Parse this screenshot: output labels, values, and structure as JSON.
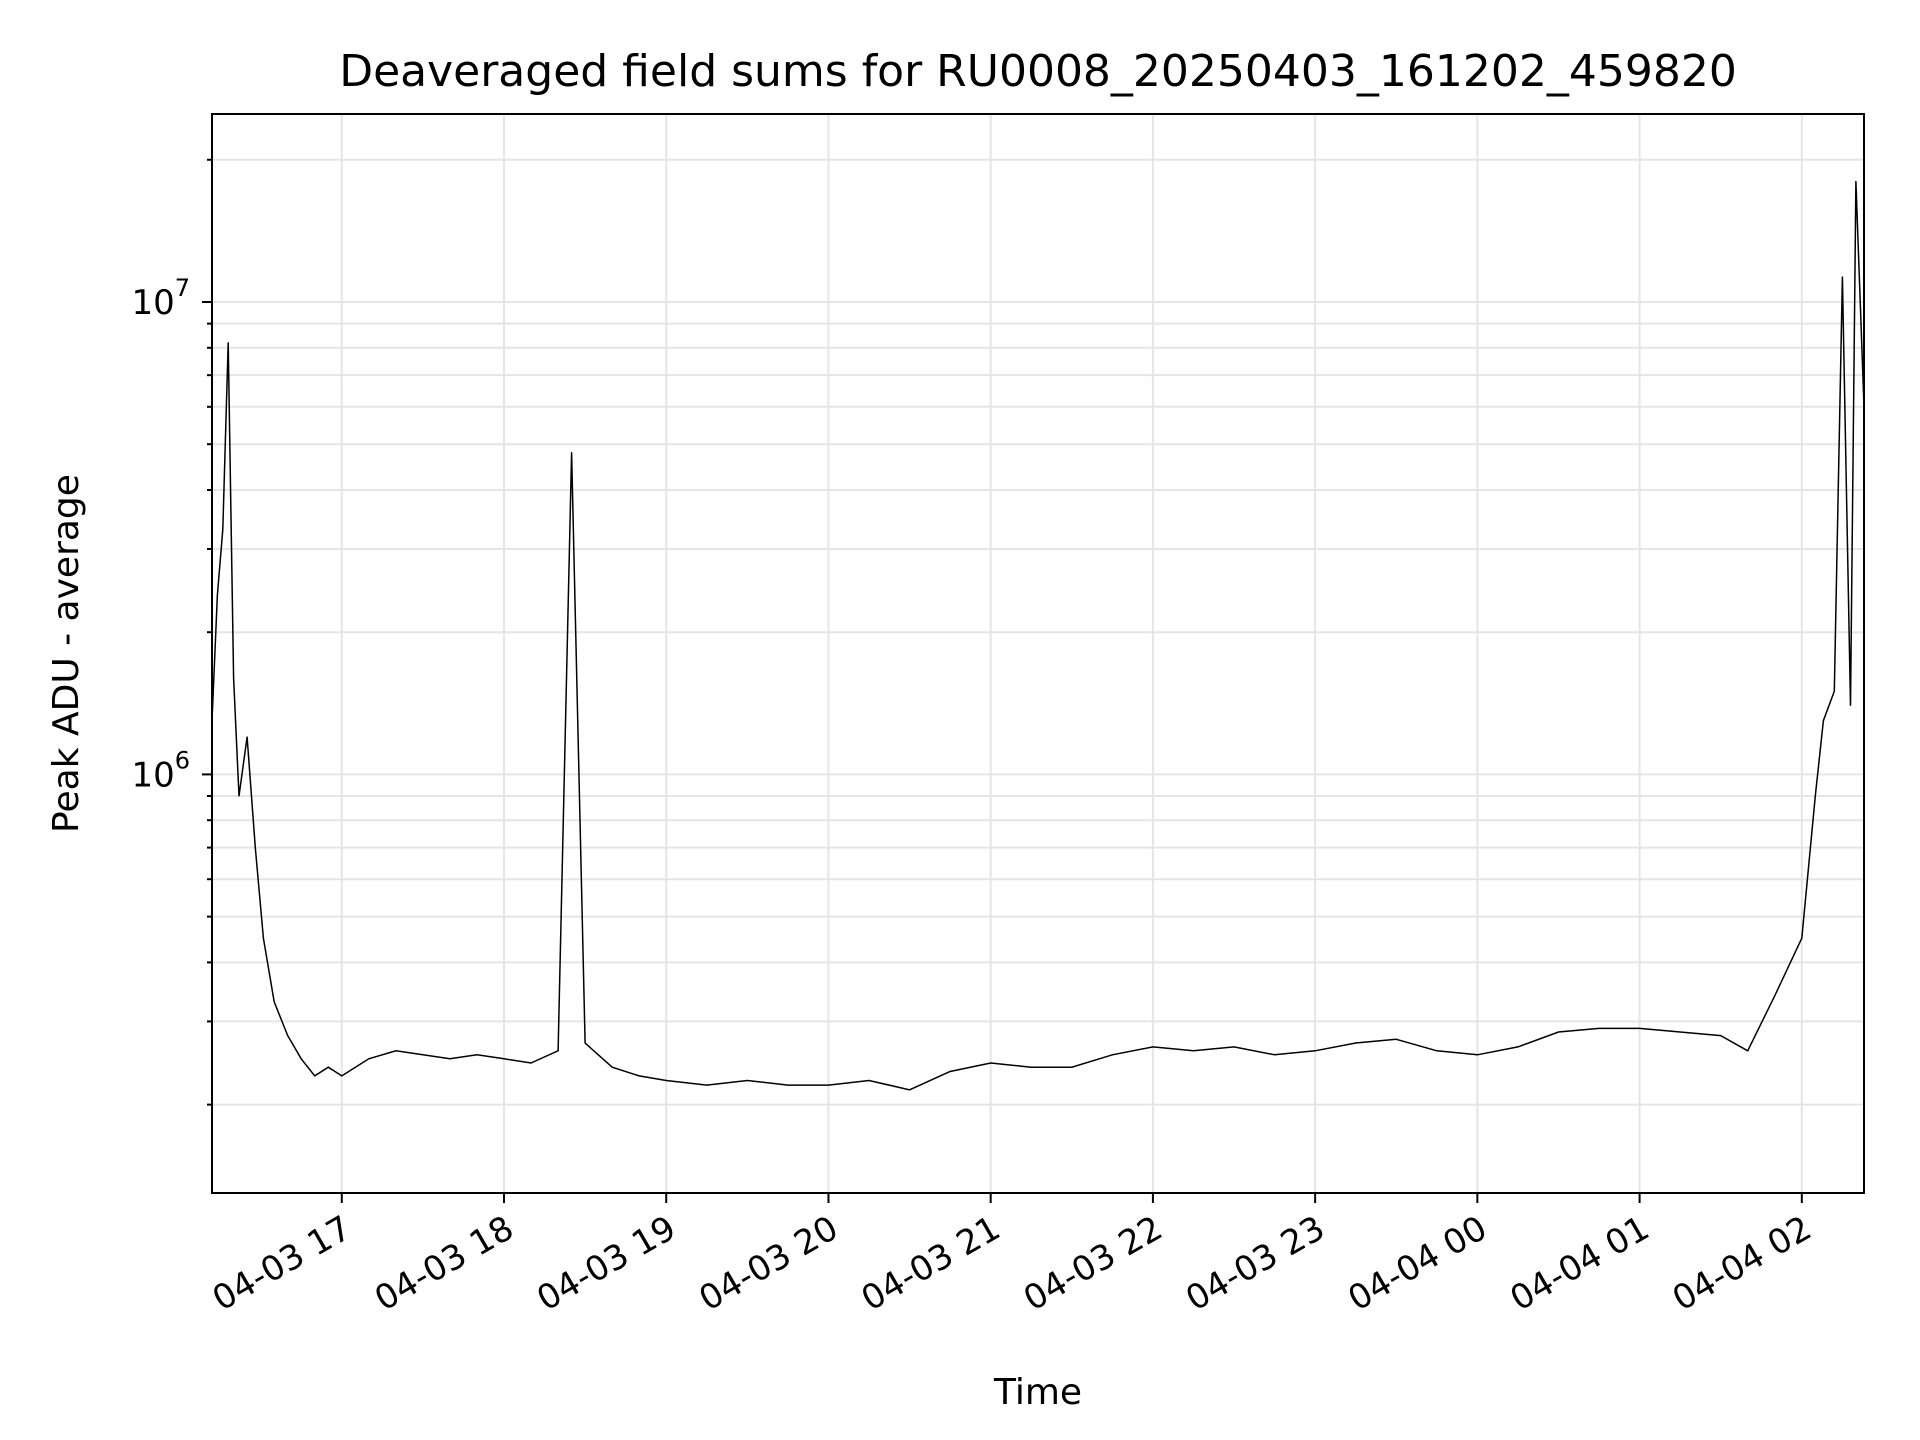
{
  "chart_data": {
    "type": "line",
    "title": "Deaveraged field sums for RU0008_20250403_161202_459820",
    "xlabel": "Time",
    "ylabel": "Peak ADU - average",
    "yscale": "log",
    "ylim": [
      130000,
      25000000
    ],
    "xlim": [
      "2025-04-03 16:12",
      "2025-04-04 02:23"
    ],
    "grid": true,
    "legend": "none",
    "colors": {
      "line": "#000000",
      "grid": "#e5e5e5",
      "frame": "#000000"
    },
    "x_ticks": [
      {
        "t": "2025-04-03 17:00",
        "label": "04-03 17"
      },
      {
        "t": "2025-04-03 18:00",
        "label": "04-03 18"
      },
      {
        "t": "2025-04-03 19:00",
        "label": "04-03 19"
      },
      {
        "t": "2025-04-03 20:00",
        "label": "04-03 20"
      },
      {
        "t": "2025-04-03 21:00",
        "label": "04-03 21"
      },
      {
        "t": "2025-04-03 22:00",
        "label": "04-03 22"
      },
      {
        "t": "2025-04-03 23:00",
        "label": "04-03 23"
      },
      {
        "t": "2025-04-04 00:00",
        "label": "04-04 00"
      },
      {
        "t": "2025-04-04 01:00",
        "label": "04-04 01"
      },
      {
        "t": "2025-04-04 02:00",
        "label": "04-04 02"
      }
    ],
    "y_major_ticks": [
      {
        "value": 1000000,
        "base": "10",
        "exp": "6"
      },
      {
        "value": 10000000,
        "base": "10",
        "exp": "7"
      }
    ],
    "series": [
      {
        "points": [
          [
            "2025-04-03 16:12",
            1300000
          ],
          [
            "2025-04-03 16:14",
            2400000
          ],
          [
            "2025-04-03 16:16",
            3300000
          ],
          [
            "2025-04-03 16:18",
            8200000
          ],
          [
            "2025-04-03 16:20",
            1600000
          ],
          [
            "2025-04-03 16:22",
            900000
          ],
          [
            "2025-04-03 16:25",
            1200000
          ],
          [
            "2025-04-03 16:28",
            700000
          ],
          [
            "2025-04-03 16:31",
            450000
          ],
          [
            "2025-04-03 16:35",
            330000
          ],
          [
            "2025-04-03 16:40",
            280000
          ],
          [
            "2025-04-03 16:45",
            250000
          ],
          [
            "2025-04-03 16:50",
            230000
          ],
          [
            "2025-04-03 16:55",
            240000
          ],
          [
            "2025-04-03 17:00",
            230000
          ],
          [
            "2025-04-03 17:10",
            250000
          ],
          [
            "2025-04-03 17:20",
            260000
          ],
          [
            "2025-04-03 17:30",
            255000
          ],
          [
            "2025-04-03 17:40",
            250000
          ],
          [
            "2025-04-03 17:50",
            255000
          ],
          [
            "2025-04-03 18:00",
            250000
          ],
          [
            "2025-04-03 18:10",
            245000
          ],
          [
            "2025-04-03 18:20",
            260000
          ],
          [
            "2025-04-03 18:25",
            4800000
          ],
          [
            "2025-04-03 18:30",
            270000
          ],
          [
            "2025-04-03 18:40",
            240000
          ],
          [
            "2025-04-03 18:50",
            230000
          ],
          [
            "2025-04-03 19:00",
            225000
          ],
          [
            "2025-04-03 19:15",
            220000
          ],
          [
            "2025-04-03 19:30",
            225000
          ],
          [
            "2025-04-03 19:45",
            220000
          ],
          [
            "2025-04-03 20:00",
            220000
          ],
          [
            "2025-04-03 20:15",
            225000
          ],
          [
            "2025-04-03 20:30",
            215000
          ],
          [
            "2025-04-03 20:45",
            235000
          ],
          [
            "2025-04-03 21:00",
            245000
          ],
          [
            "2025-04-03 21:15",
            240000
          ],
          [
            "2025-04-03 21:30",
            240000
          ],
          [
            "2025-04-03 21:45",
            255000
          ],
          [
            "2025-04-03 22:00",
            265000
          ],
          [
            "2025-04-03 22:15",
            260000
          ],
          [
            "2025-04-03 22:30",
            265000
          ],
          [
            "2025-04-03 22:45",
            255000
          ],
          [
            "2025-04-03 23:00",
            260000
          ],
          [
            "2025-04-03 23:15",
            270000
          ],
          [
            "2025-04-03 23:30",
            275000
          ],
          [
            "2025-04-03 23:45",
            260000
          ],
          [
            "2025-04-04 00:00",
            255000
          ],
          [
            "2025-04-04 00:15",
            265000
          ],
          [
            "2025-04-04 00:30",
            285000
          ],
          [
            "2025-04-04 00:45",
            290000
          ],
          [
            "2025-04-04 01:00",
            290000
          ],
          [
            "2025-04-04 01:15",
            285000
          ],
          [
            "2025-04-04 01:30",
            280000
          ],
          [
            "2025-04-04 01:40",
            260000
          ],
          [
            "2025-04-04 01:50",
            340000
          ],
          [
            "2025-04-04 02:00",
            450000
          ],
          [
            "2025-04-04 02:05",
            900000
          ],
          [
            "2025-04-04 02:08",
            1300000
          ],
          [
            "2025-04-04 02:12",
            1500000
          ],
          [
            "2025-04-04 02:15",
            11300000
          ],
          [
            "2025-04-04 02:18",
            1400000
          ],
          [
            "2025-04-04 02:20",
            18000000
          ],
          [
            "2025-04-04 02:23",
            6000000
          ]
        ]
      }
    ]
  }
}
